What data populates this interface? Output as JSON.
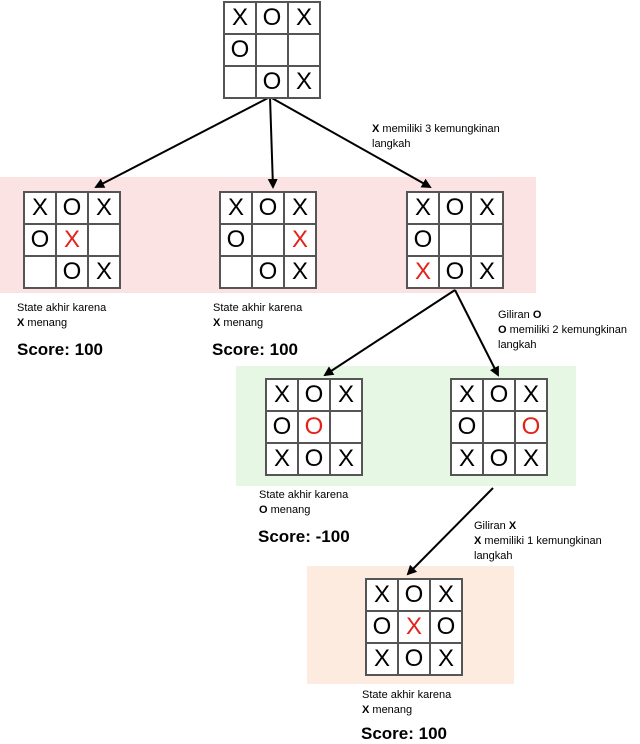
{
  "colors": {
    "red_band": "#fbe3e3",
    "green_band": "#e6f7e4",
    "orange_band": "#fdebe0",
    "highlight": "#e2231a"
  },
  "boards": {
    "root": {
      "cells": [
        "X",
        "O",
        "X",
        "O",
        "",
        "",
        "",
        "O",
        "X"
      ],
      "red": []
    },
    "b1": {
      "cells": [
        "X",
        "O",
        "X",
        "O",
        "X",
        "",
        "",
        "O",
        "X"
      ],
      "red": [
        4
      ]
    },
    "b2": {
      "cells": [
        "X",
        "O",
        "X",
        "O",
        "",
        "X",
        "",
        "O",
        "X"
      ],
      "red": [
        5
      ]
    },
    "b3": {
      "cells": [
        "X",
        "O",
        "X",
        "O",
        "",
        "",
        "X",
        "O",
        "X"
      ],
      "red": [
        6
      ]
    },
    "c1": {
      "cells": [
        "X",
        "O",
        "X",
        "O",
        "O",
        "",
        "X",
        "O",
        "X"
      ],
      "red": [
        4
      ]
    },
    "c2": {
      "cells": [
        "X",
        "O",
        "X",
        "O",
        "",
        "O",
        "X",
        "O",
        "X"
      ],
      "red": [
        5
      ]
    },
    "d1": {
      "cells": [
        "X",
        "O",
        "X",
        "O",
        "X",
        "O",
        "X",
        "O",
        "X"
      ],
      "red": [
        4
      ]
    }
  },
  "annotations": {
    "a1": {
      "bold": "X",
      "text": " memiliki 3 kemungkinan",
      "line2": "langkah"
    },
    "a2": {
      "line0_prefix": "Giliran ",
      "line0_bold": "O",
      "bold": "O",
      "text": " memiliki 2 kemungkinan",
      "line2": "langkah"
    },
    "a3": {
      "line0_prefix": "Giliran ",
      "line0_bold": "X",
      "bold": "X",
      "text": " memiliki 1 kemungkinan",
      "line2": "langkah"
    }
  },
  "results": {
    "r1": {
      "line1": "State akhir karena",
      "bold": "X",
      "text": " menang",
      "score": "Score: 100"
    },
    "r2": {
      "line1": "State akhir karena",
      "bold": "X",
      "text": " menang",
      "score": "Score: 100"
    },
    "r3": {
      "line1": "State akhir karena",
      "bold": "O",
      "text": " menang",
      "score": "Score: -100"
    },
    "r4": {
      "line1": "State akhir karena",
      "bold": "X",
      "text": " menang",
      "score": "Score: 100"
    }
  }
}
